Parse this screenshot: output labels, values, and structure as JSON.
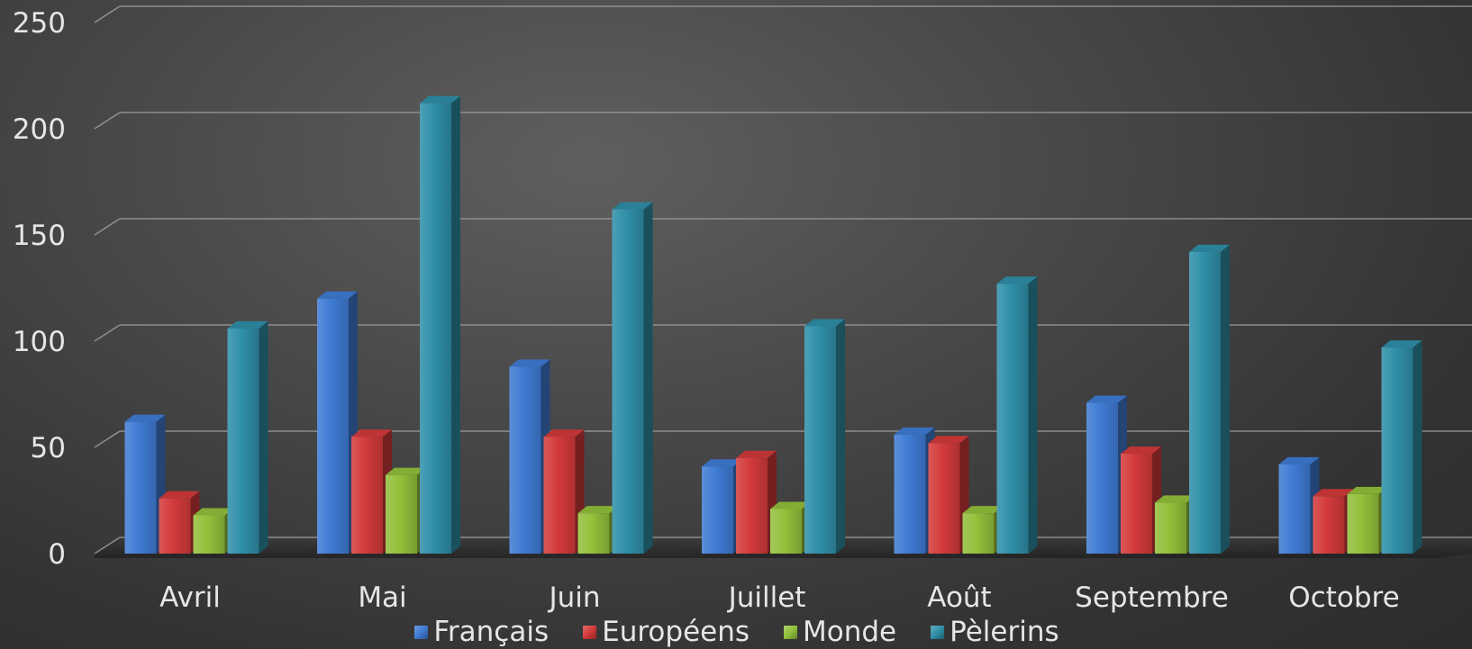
{
  "chart_data": {
    "type": "bar",
    "categories": [
      "Avril",
      "Mai",
      "Juin",
      "Juillet",
      "Août",
      "Septembre",
      "Octobre"
    ],
    "series": [
      {
        "name": "Français",
        "color": "#3f7bd4",
        "values": [
          62,
          120,
          88,
          41,
          56,
          71,
          42
        ]
      },
      {
        "name": "Européens",
        "color": "#d33a3a",
        "values": [
          26,
          55,
          55,
          45,
          52,
          47,
          27
        ]
      },
      {
        "name": "Monde",
        "color": "#93c03b",
        "values": [
          18,
          37,
          19,
          21,
          19,
          24,
          28
        ]
      },
      {
        "name": "Pèlerins",
        "color": "#2f8fa8",
        "values": [
          106,
          212,
          162,
          107,
          127,
          142,
          97
        ]
      }
    ],
    "ylim": [
      0,
      250
    ],
    "yticks": [
      0,
      50,
      100,
      150,
      200,
      250
    ],
    "grid": true,
    "legend_position": "bottom",
    "style": "3d-clustered-column"
  }
}
